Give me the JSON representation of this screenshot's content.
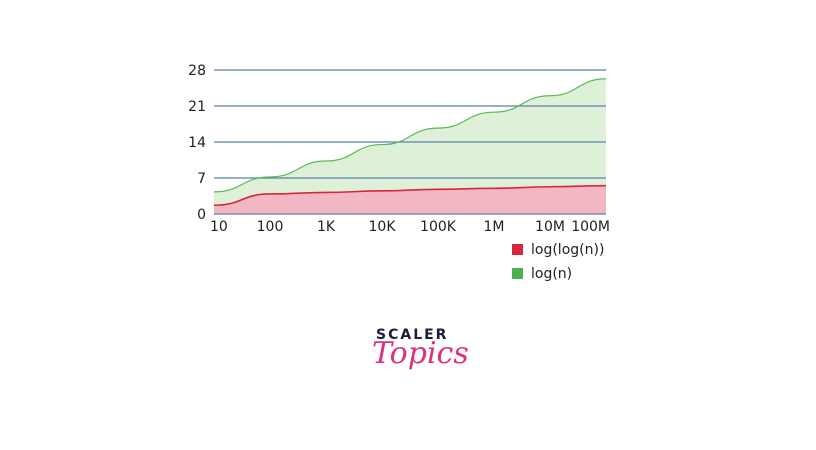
{
  "chart_data": {
    "type": "area",
    "x": [
      10,
      100,
      1000,
      10000,
      100000,
      1000000,
      10000000,
      100000000
    ],
    "categories": [
      "10",
      "100",
      "1K",
      "10K",
      "100K",
      "1M",
      "10M",
      "100M"
    ],
    "y_ticks": [
      "0",
      "7",
      "14",
      "21",
      "28"
    ],
    "ylim": [
      0,
      28
    ],
    "x_scale": "log",
    "grid": "horizontal",
    "legend_position": "bottom-right",
    "series": [
      {
        "name": "log(log(n))",
        "values": [
          1.7,
          3.9,
          4.2,
          4.5,
          4.8,
          5.0,
          5.3,
          5.5
        ],
        "color": "#d7263d",
        "fill": "#f3b6c3"
      },
      {
        "name": "log(n)",
        "values": [
          4.3,
          7.2,
          10.3,
          13.5,
          16.7,
          19.8,
          23.0,
          26.3
        ],
        "color": "#5cb85c",
        "fill": "#dff0d8"
      }
    ],
    "gridline_color": "#5b7fa8"
  },
  "logo": {
    "top": "SCALER",
    "bottom": "Topics"
  }
}
